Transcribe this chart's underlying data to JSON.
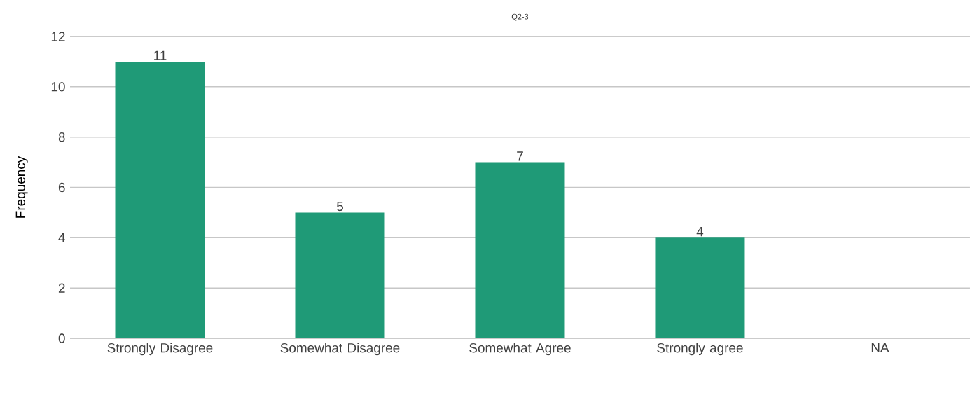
{
  "chart_data": {
    "type": "bar",
    "title": "Q2-3",
    "ylabel": "Frequency",
    "categories": [
      "Strongly Disagree",
      "Somewhat Disagree",
      "Somewhat Agree",
      "Strongly agree",
      "NA"
    ],
    "values": [
      11,
      5,
      7,
      4,
      0
    ],
    "value_labels": [
      "11",
      "5",
      "7",
      "4",
      null
    ],
    "color": "#1f9a77",
    "ylim": [
      0,
      12
    ],
    "yticks": [
      0,
      2,
      4,
      6,
      8,
      10,
      12
    ],
    "grid": "y"
  }
}
